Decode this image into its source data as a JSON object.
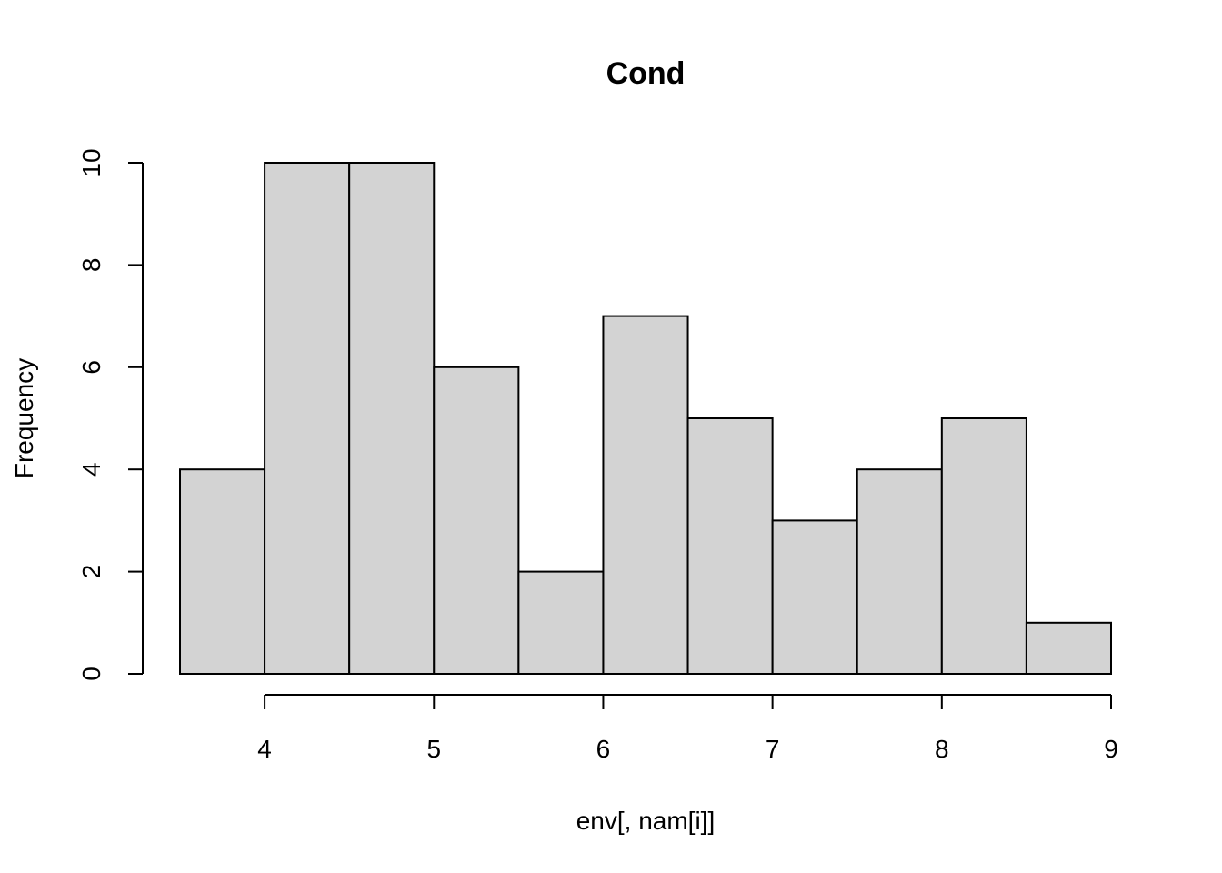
{
  "chart_data": {
    "type": "histogram",
    "title": "Cond",
    "xlabel": "env[, nam[i]]",
    "ylabel": "Frequency",
    "bins": [
      {
        "start": 3.5,
        "end": 4.0,
        "count": 4
      },
      {
        "start": 4.0,
        "end": 4.5,
        "count": 10
      },
      {
        "start": 4.5,
        "end": 5.0,
        "count": 10
      },
      {
        "start": 5.0,
        "end": 5.5,
        "count": 6
      },
      {
        "start": 5.5,
        "end": 6.0,
        "count": 2
      },
      {
        "start": 6.0,
        "end": 6.5,
        "count": 7
      },
      {
        "start": 6.5,
        "end": 7.0,
        "count": 5
      },
      {
        "start": 7.0,
        "end": 7.5,
        "count": 3
      },
      {
        "start": 7.5,
        "end": 8.0,
        "count": 4
      },
      {
        "start": 8.0,
        "end": 8.5,
        "count": 5
      },
      {
        "start": 8.5,
        "end": 9.0,
        "count": 1
      }
    ],
    "x_ticks": [
      4,
      5,
      6,
      7,
      8,
      9
    ],
    "y_ticks": [
      0,
      2,
      4,
      6,
      8,
      10
    ],
    "xlim": [
      3.5,
      9
    ],
    "ylim": [
      0,
      10
    ],
    "bar_color": "#d3d3d3",
    "grid": false
  }
}
